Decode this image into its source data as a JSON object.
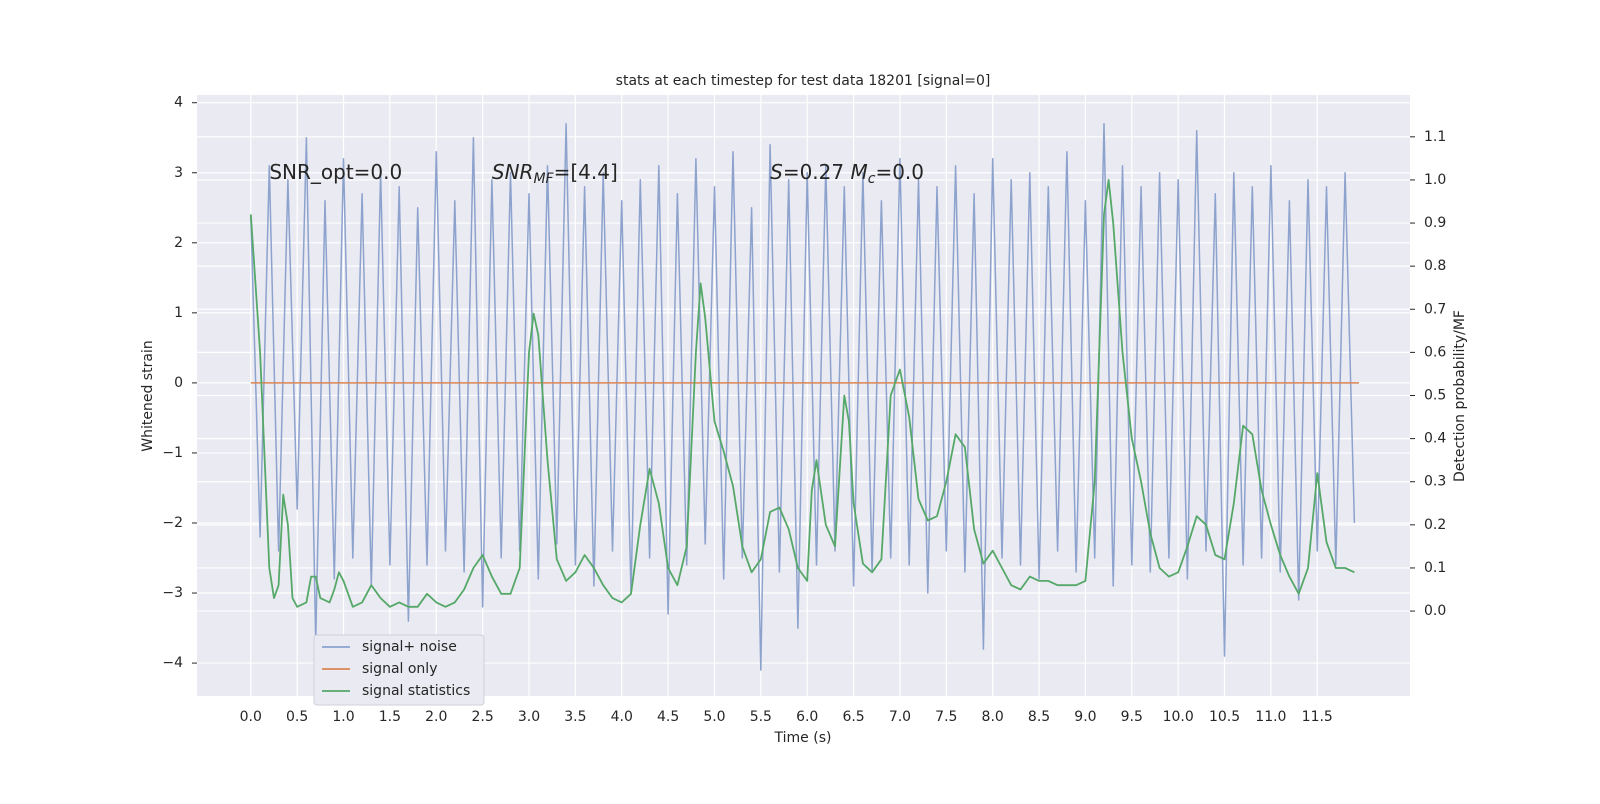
{
  "chart_data": {
    "type": "line",
    "title": "stats at each timestep for test data 18201 [signal=0]",
    "xlabel": "Time (s)",
    "ylabel": "Whitened strain",
    "y2label": "Detection probability/MF",
    "annotations": [
      [
        "SNR_opt=0.0"
      ],
      [
        "SNR",
        "MF",
        "=[4.4]"
      ],
      [
        "S",
        "=0.27   ",
        "M",
        "c",
        "=0.0"
      ]
    ],
    "xlim": [
      -0.58,
      12.5
    ],
    "ylim": [
      -4.47,
      4.11
    ],
    "y2lim": [
      -0.197,
      1.197
    ],
    "xticks": [
      {
        "value": 0,
        "label": "0.0"
      },
      {
        "value": 0.5,
        "label": "0.5"
      },
      {
        "value": 1,
        "label": "1.0"
      },
      {
        "value": 1.5,
        "label": "1.5"
      },
      {
        "value": 2,
        "label": "2.0"
      },
      {
        "value": 2.5,
        "label": "2.5"
      },
      {
        "value": 3,
        "label": "3.0"
      },
      {
        "value": 3.5,
        "label": "3.5"
      },
      {
        "value": 4,
        "label": "4.0"
      },
      {
        "value": 4.5,
        "label": "4.5"
      },
      {
        "value": 5,
        "label": "5.0"
      },
      {
        "value": 5.5,
        "label": "5.5"
      },
      {
        "value": 6,
        "label": "6.0"
      },
      {
        "value": 6.5,
        "label": "6.5"
      },
      {
        "value": 7,
        "label": "7.0"
      },
      {
        "value": 7.5,
        "label": "7.5"
      },
      {
        "value": 8,
        "label": "8.0"
      },
      {
        "value": 8.5,
        "label": "8.5"
      },
      {
        "value": 9,
        "label": "9.0"
      },
      {
        "value": 9.5,
        "label": "9.5"
      },
      {
        "value": 10,
        "label": "10.0"
      },
      {
        "value": 10.5,
        "label": "10.5"
      },
      {
        "value": 11,
        "label": "11.0"
      },
      {
        "value": 11.5,
        "label": "11.5"
      }
    ],
    "yticks": [
      {
        "value": -4,
        "label": "−4"
      },
      {
        "value": -3,
        "label": "−3"
      },
      {
        "value": -2,
        "label": "−2"
      },
      {
        "value": -1,
        "label": "−1"
      },
      0,
      1,
      2,
      3,
      4
    ],
    "y2ticks": [
      {
        "value": 0,
        "label": "0.0"
      },
      {
        "value": 0.1,
        "label": "0.1"
      },
      {
        "value": 0.2,
        "label": "0.2"
      },
      {
        "value": 0.3,
        "label": "0.3"
      },
      {
        "value": 0.4,
        "label": "0.4"
      },
      {
        "value": 0.5,
        "label": "0.5"
      },
      {
        "value": 0.6,
        "label": "0.6"
      },
      {
        "value": 0.7,
        "label": "0.7"
      },
      {
        "value": 0.8,
        "label": "0.8"
      },
      {
        "value": 0.9,
        "label": "0.9"
      },
      {
        "value": 1,
        "label": "1.0"
      },
      {
        "value": 1.1,
        "label": "1.1"
      }
    ],
    "grid": true,
    "legend": "lower left",
    "series": [
      {
        "name": "signal+ noise",
        "color": "#8da2cd",
        "x": [
          0,
          0.1,
          0.2,
          0.3,
          0.4,
          0.5,
          0.6,
          0.7,
          0.8,
          0.9,
          1,
          1.1,
          1.2,
          1.3,
          1.4,
          1.5,
          1.6,
          1.7,
          1.8,
          1.9,
          2,
          2.1,
          2.2,
          2.3,
          2.4,
          2.5,
          2.6,
          2.7,
          2.8,
          2.9,
          3,
          3.1,
          3.2,
          3.3,
          3.4,
          3.5,
          3.6,
          3.7,
          3.8,
          3.9,
          4,
          4.1,
          4.2,
          4.3,
          4.4,
          4.5,
          4.6,
          4.7,
          4.8,
          4.9,
          5,
          5.1,
          5.2,
          5.3,
          5.4,
          5.5,
          5.6,
          5.7,
          5.8,
          5.9,
          6,
          6.1,
          6.2,
          6.3,
          6.4,
          6.5,
          6.6,
          6.7,
          6.8,
          6.9,
          7,
          7.1,
          7.2,
          7.3,
          7.4,
          7.5,
          7.6,
          7.7,
          7.8,
          7.9,
          8,
          8.1,
          8.2,
          8.3,
          8.4,
          8.5,
          8.6,
          8.7,
          8.8,
          8.9,
          9,
          9.1,
          9.2,
          9.3,
          9.4,
          9.5,
          9.6,
          9.7,
          9.8,
          9.9,
          10,
          10.1,
          10.2,
          10.3,
          10.4,
          10.5,
          10.6,
          10.7,
          10.8,
          10.9,
          11,
          11.1,
          11.2,
          11.3,
          11.4,
          11.5,
          11.6,
          11.7,
          11.8,
          11.9
        ],
        "values": [
          2.4,
          -2.2,
          3.1,
          -2.4,
          2.9,
          -1.8,
          3.5,
          -3.7,
          2.6,
          -2.8,
          3.2,
          -2.5,
          2.7,
          -2.9,
          3.0,
          -2.6,
          2.8,
          -3.4,
          2.5,
          -2.6,
          3.3,
          -2.4,
          2.6,
          -2.7,
          3.5,
          -3.2,
          2.9,
          -2.5,
          3.0,
          -2.4,
          2.7,
          -2.8,
          3.1,
          -2.3,
          3.7,
          -2.6,
          2.8,
          -2.9,
          3.0,
          -2.4,
          2.6,
          -3.0,
          2.9,
          -2.5,
          3.1,
          -3.3,
          2.7,
          -2.6,
          3.2,
          -2.3,
          2.8,
          -2.8,
          3.3,
          -2.5,
          2.5,
          -4.1,
          3.4,
          -2.7,
          2.9,
          -3.5,
          3.0,
          -2.6,
          3.1,
          -2.4,
          2.8,
          -2.9,
          3.0,
          -2.7,
          2.6,
          -2.5,
          3.2,
          -2.6,
          2.9,
          -3.0,
          2.8,
          -2.4,
          3.1,
          -2.7,
          2.7,
          -3.8,
          3.2,
          -2.5,
          2.9,
          -2.6,
          3.0,
          -2.8,
          2.8,
          -2.4,
          3.3,
          -2.7,
          2.6,
          -2.5,
          3.7,
          -2.9,
          3.1,
          -2.6,
          2.8,
          -2.7,
          3.0,
          -2.5,
          2.9,
          -2.8,
          3.6,
          -2.4,
          2.7,
          -3.9,
          3.0,
          -2.6,
          2.8,
          -2.5,
          3.1,
          -2.7,
          2.6,
          -3.1,
          2.9,
          -2.4,
          2.8,
          -2.6,
          3.0,
          -2.0
        ]
      },
      {
        "name": "signal only",
        "color": "#dd8452",
        "x": [
          0,
          11.95
        ],
        "values": [
          0,
          0
        ]
      },
      {
        "name": "signal statistics",
        "color": "#55a868",
        "axis": "y2",
        "x": [
          0,
          0.1,
          0.2,
          0.25,
          0.3,
          0.35,
          0.4,
          0.45,
          0.5,
          0.6,
          0.65,
          0.7,
          0.75,
          0.85,
          0.9,
          0.95,
          1,
          1.1,
          1.2,
          1.3,
          1.4,
          1.5,
          1.6,
          1.7,
          1.8,
          1.9,
          2,
          2.1,
          2.2,
          2.3,
          2.4,
          2.5,
          2.6,
          2.7,
          2.8,
          2.9,
          3,
          3.05,
          3.1,
          3.2,
          3.3,
          3.4,
          3.5,
          3.6,
          3.7,
          3.8,
          3.9,
          4,
          4.1,
          4.2,
          4.3,
          4.4,
          4.5,
          4.6,
          4.7,
          4.8,
          4.85,
          4.9,
          5,
          5.1,
          5.2,
          5.3,
          5.4,
          5.5,
          5.6,
          5.7,
          5.8,
          5.9,
          6,
          6.05,
          6.1,
          6.2,
          6.3,
          6.4,
          6.45,
          6.5,
          6.6,
          6.7,
          6.8,
          6.9,
          7,
          7.1,
          7.2,
          7.3,
          7.4,
          7.5,
          7.6,
          7.7,
          7.8,
          7.9,
          8,
          8.1,
          8.2,
          8.3,
          8.4,
          8.5,
          8.6,
          8.7,
          8.8,
          8.9,
          9,
          9.1,
          9.2,
          9.25,
          9.3,
          9.4,
          9.5,
          9.6,
          9.7,
          9.8,
          9.9,
          10,
          10.1,
          10.2,
          10.3,
          10.4,
          10.5,
          10.6,
          10.7,
          10.8,
          10.9,
          11,
          11.1,
          11.2,
          11.3,
          11.4,
          11.5,
          11.6,
          11.7,
          11.8,
          11.9
        ],
        "values": [
          0.92,
          0.6,
          0.1,
          0.03,
          0.06,
          0.27,
          0.2,
          0.03,
          0.01,
          0.02,
          0.08,
          0.08,
          0.03,
          0.02,
          0.05,
          0.09,
          0.07,
          0.01,
          0.02,
          0.06,
          0.03,
          0.01,
          0.02,
          0.01,
          0.01,
          0.04,
          0.02,
          0.01,
          0.02,
          0.05,
          0.1,
          0.13,
          0.08,
          0.04,
          0.04,
          0.1,
          0.6,
          0.69,
          0.64,
          0.35,
          0.12,
          0.07,
          0.09,
          0.13,
          0.1,
          0.06,
          0.03,
          0.02,
          0.04,
          0.2,
          0.33,
          0.25,
          0.1,
          0.06,
          0.15,
          0.6,
          0.76,
          0.68,
          0.44,
          0.37,
          0.29,
          0.15,
          0.09,
          0.12,
          0.23,
          0.24,
          0.19,
          0.1,
          0.07,
          0.28,
          0.35,
          0.2,
          0.15,
          0.5,
          0.44,
          0.25,
          0.11,
          0.09,
          0.12,
          0.5,
          0.56,
          0.45,
          0.26,
          0.21,
          0.22,
          0.3,
          0.41,
          0.38,
          0.19,
          0.11,
          0.14,
          0.1,
          0.06,
          0.05,
          0.08,
          0.07,
          0.07,
          0.06,
          0.06,
          0.06,
          0.07,
          0.3,
          0.92,
          1.0,
          0.9,
          0.6,
          0.4,
          0.3,
          0.18,
          0.1,
          0.08,
          0.09,
          0.15,
          0.22,
          0.2,
          0.13,
          0.12,
          0.25,
          0.43,
          0.41,
          0.28,
          0.2,
          0.13,
          0.08,
          0.04,
          0.1,
          0.32,
          0.16,
          0.1,
          0.1,
          0.09
        ]
      }
    ]
  }
}
